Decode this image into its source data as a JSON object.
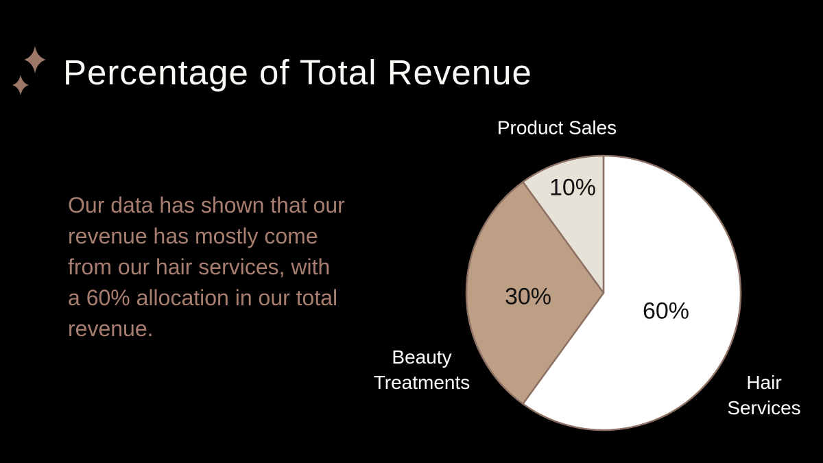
{
  "slide": {
    "title": "Percentage of Total Revenue",
    "body_text": "Our data has shown that our\nrevenue has mostly come\nfrom our hair services, with\na 60% allocation in our total\nrevenue.",
    "colors": {
      "background": "#000000",
      "title_text": "#fbfaf7",
      "body_text": "#a87e70",
      "sparkle": "#9d7868",
      "pie_stroke": "#8d7164",
      "percent_label_text": "#121212",
      "category_label_text": "#ffffff"
    }
  },
  "chart_data": {
    "type": "pie",
    "title": "Percentage of Total Revenue",
    "start_angle_deg": 0,
    "direction": "clockwise",
    "legend_position": "none",
    "labels": "category names outside, percent values inside slices",
    "slices": [
      {
        "label": "Hair Services",
        "value": 60,
        "percent_label": "60%",
        "color": "#ffffff"
      },
      {
        "label": "Beauty Treatments",
        "value": 30,
        "percent_label": "30%",
        "color": "#bd9f85"
      },
      {
        "label": "Product Sales",
        "value": 10,
        "percent_label": "10%",
        "color": "#e7e2d7"
      }
    ]
  }
}
